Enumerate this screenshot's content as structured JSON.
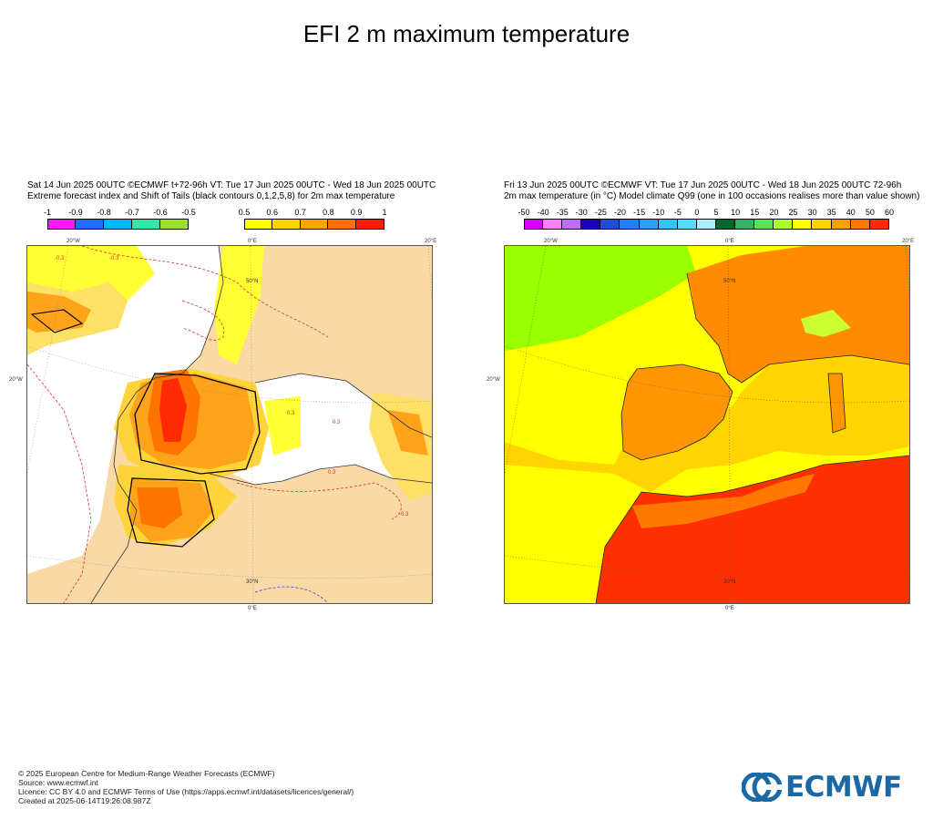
{
  "title": "EFI 2 m maximum temperature",
  "left": {
    "header_line1": "Sat 14 Jun 2025 00UTC ©ECMWF t+72-96h  VT: Tue 17 Jun 2025 00UTC - Wed 18 Jun 2025 00UTC",
    "header_line2": "Extreme forecast index and Shift of Tails (black contours 0,1,2,5,8) for 2m max temperature",
    "neg_colorbar": {
      "ticks": [
        "-1",
        "-0.9",
        "-0.8",
        "-0.7",
        "-0.6",
        "-0.5"
      ],
      "colors": [
        "#ff1aff",
        "#1f6fff",
        "#00b7ff",
        "#33e6a6",
        "#9be22f"
      ]
    },
    "pos_colorbar": {
      "ticks": [
        "0.5",
        "0.6",
        "0.7",
        "0.8",
        "0.9",
        "1"
      ],
      "colors": [
        "#ffff00",
        "#ffd400",
        "#ffa500",
        "#ff7000",
        "#ff1a00"
      ]
    },
    "grid_labels": {
      "top_w": "20°W",
      "top_0": "0°E",
      "top_e": "20°E",
      "left_lat": "20°W",
      "right_e": "20°E",
      "lat50": "50°N",
      "lat30": "30°N",
      "bottom_0": "0°E"
    },
    "contour_labels": [
      "-0.3",
      "-0.3",
      "0.3",
      "0.3",
      "0.3",
      "-0.3"
    ]
  },
  "right": {
    "header_line1": "Fri 13 Jun 2025 00UTC ©ECMWF VT: Tue 17 Jun 2025 00UTC - Wed 18 Jun 2025 00UTC    72-96h",
    "header_line2": "2m max temperature (in °C)  Model climate Q99 (one in 100 occasions realises more than value shown)",
    "colorbar": {
      "ticks": [
        "-50",
        "-40",
        "-35",
        "-30",
        "-25",
        "-20",
        "-15",
        "-10",
        "-5",
        "0",
        "5",
        "10",
        "15",
        "20",
        "25",
        "30",
        "35",
        "40",
        "50",
        "60"
      ],
      "colors": [
        "#d400ff",
        "#ff80ff",
        "#c06cff",
        "#1a00b3",
        "#1f4fd9",
        "#1f7fff",
        "#2aa0ff",
        "#33c4ff",
        "#55ddff",
        "#aaf0ff",
        "#00662e",
        "#33b366",
        "#55e655",
        "#aaff33",
        "#ffff00",
        "#ffd400",
        "#ffa000",
        "#ff7800",
        "#ff2a00"
      ]
    },
    "grid_labels": {
      "top_w": "20°W",
      "top_0": "0°E",
      "top_e": "20°E",
      "left_lat": "20°W",
      "right_e": "20°E",
      "lat50": "50°N",
      "lat30": "30°N",
      "bottom_0": "0°E"
    }
  },
  "footer": {
    "line1": "© 2025 European Centre for Medium-Range Weather Forecasts (ECMWF)",
    "line2": "Source: www.ecmwf.int",
    "line3": "Licence: CC BY 4.0 and ECMWF Terms of Use (https://apps.ecmwf.int/datasets/licences/general/)",
    "line4": "Created at 2025-06-14T19:26:08.987Z"
  },
  "logo": {
    "text": "ECMWF",
    "color": "#1a69a4"
  }
}
